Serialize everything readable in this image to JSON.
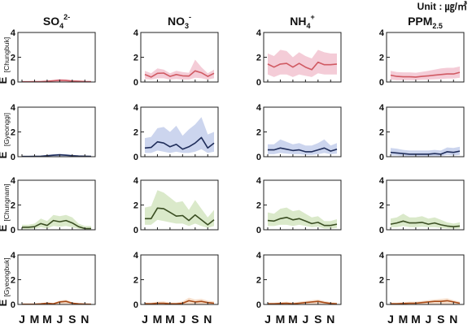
{
  "unit_label": "Unit : ㎍/㎥",
  "columns": [
    {
      "base": "SO",
      "sub": "4",
      "sup": "2-"
    },
    {
      "base": "NO",
      "sub": "3",
      "sup": "-"
    },
    {
      "base": "NH",
      "sub": "4",
      "sup": "+"
    },
    {
      "base": "PPM",
      "sub": "2.5",
      "sup": ""
    }
  ],
  "rows": [
    {
      "e_label": "E",
      "region": "[Chungbuk]"
    },
    {
      "e_label": "E",
      "region": "[Gyeonggi]"
    },
    {
      "e_label": "E",
      "region": "[Chungnam]"
    },
    {
      "e_label": "E",
      "region": "[Gyeongbuk]"
    }
  ],
  "x_tick_labels": [
    "J",
    "M",
    "M",
    "J",
    "S",
    "N"
  ],
  "chart_data": {
    "type": "line",
    "x": [
      1,
      2,
      3,
      4,
      5,
      6,
      7,
      8,
      9,
      10,
      11,
      12
    ],
    "x_ticks": [
      1,
      3,
      5,
      7,
      9,
      11
    ],
    "ylim": [
      0,
      4
    ],
    "yticks": [
      0,
      2,
      4
    ],
    "grid": false,
    "row_colors": [
      "#d05a63",
      "#1f2d5a",
      "#3a4e22",
      "#a84a16"
    ],
    "band_colors": [
      "#f3c6d3",
      "#c6d0ec",
      "#d6e7c4",
      "#f6dcc6"
    ],
    "panels": [
      [
        {
          "mean": [
            0.02,
            0.02,
            0.03,
            0.03,
            0.06,
            0.1,
            0.14,
            0.12,
            0.08,
            0.06,
            0.04,
            0.03
          ],
          "band": [
            [
              0,
              0.05
            ],
            [
              0,
              0.06
            ],
            [
              0,
              0.06
            ],
            [
              0,
              0.07
            ],
            [
              0,
              0.12
            ],
            [
              0,
              0.18
            ],
            [
              0,
              0.24
            ],
            [
              0,
              0.22
            ],
            [
              0,
              0.15
            ],
            [
              0,
              0.12
            ],
            [
              0,
              0.08
            ],
            [
              0,
              0.06
            ]
          ]
        },
        {
          "mean": [
            0.6,
            0.4,
            0.7,
            0.72,
            0.45,
            0.6,
            0.5,
            0.48,
            0.9,
            0.75,
            0.45,
            0.7
          ],
          "band": [
            [
              0.25,
              0.9
            ],
            [
              0.2,
              0.7
            ],
            [
              0.3,
              1.1
            ],
            [
              0.3,
              1.0
            ],
            [
              0.2,
              0.7
            ],
            [
              0.25,
              0.9
            ],
            [
              0.2,
              0.8
            ],
            [
              0.2,
              0.75
            ],
            [
              0.35,
              1.8
            ],
            [
              0.3,
              1.2
            ],
            [
              0.2,
              0.7
            ],
            [
              0.3,
              1.0
            ]
          ]
        },
        {
          "mean": [
            1.45,
            1.2,
            1.45,
            1.5,
            1.2,
            1.5,
            1.2,
            1.0,
            1.6,
            1.4,
            1.4,
            1.45
          ],
          "band": [
            [
              0.6,
              2.3
            ],
            [
              0.4,
              2.1
            ],
            [
              0.6,
              2.6
            ],
            [
              0.6,
              2.5
            ],
            [
              0.4,
              2.0
            ],
            [
              0.6,
              2.4
            ],
            [
              0.5,
              2.1
            ],
            [
              0.4,
              1.9
            ],
            [
              0.7,
              2.6
            ],
            [
              0.6,
              2.4
            ],
            [
              0.6,
              2.3
            ],
            [
              0.6,
              2.3
            ]
          ]
        },
        {
          "mean": [
            0.55,
            0.45,
            0.42,
            0.42,
            0.4,
            0.45,
            0.5,
            0.55,
            0.6,
            0.65,
            0.65,
            0.78
          ],
          "band": [
            [
              0.2,
              0.9
            ],
            [
              0.15,
              0.8
            ],
            [
              0.15,
              0.78
            ],
            [
              0.15,
              0.78
            ],
            [
              0.15,
              0.75
            ],
            [
              0.18,
              0.82
            ],
            [
              0.2,
              0.9
            ],
            [
              0.22,
              1.0
            ],
            [
              0.25,
              1.1
            ],
            [
              0.28,
              1.15
            ],
            [
              0.28,
              1.15
            ],
            [
              0.35,
              1.25
            ]
          ]
        }
      ],
      [
        {
          "mean": [
            0.02,
            0.02,
            0.03,
            0.04,
            0.08,
            0.12,
            0.15,
            0.12,
            0.08,
            0.05,
            0.04,
            0.03
          ],
          "band": [
            [
              0,
              0.05
            ],
            [
              0,
              0.05
            ],
            [
              0,
              0.07
            ],
            [
              0,
              0.08
            ],
            [
              0,
              0.14
            ],
            [
              0,
              0.2
            ],
            [
              0,
              0.24
            ],
            [
              0,
              0.2
            ],
            [
              0,
              0.14
            ],
            [
              0,
              0.1
            ],
            [
              0,
              0.08
            ],
            [
              0,
              0.06
            ]
          ]
        },
        {
          "mean": [
            0.7,
            0.75,
            1.2,
            1.1,
            0.8,
            1.0,
            0.6,
            0.8,
            1.1,
            1.55,
            0.7,
            1.1
          ],
          "band": [
            [
              0.3,
              1.5
            ],
            [
              0.3,
              1.6
            ],
            [
              0.5,
              2.3
            ],
            [
              0.4,
              2.4
            ],
            [
              0.3,
              2.0
            ],
            [
              0.4,
              2.5
            ],
            [
              0.3,
              1.7
            ],
            [
              0.3,
              2.2
            ],
            [
              0.4,
              2.6
            ],
            [
              0.6,
              3.2
            ],
            [
              0.3,
              1.8
            ],
            [
              0.4,
              2.0
            ]
          ]
        },
        {
          "mean": [
            0.55,
            0.55,
            0.7,
            0.6,
            0.5,
            0.55,
            0.4,
            0.4,
            0.55,
            0.7,
            0.45,
            0.6
          ],
          "band": [
            [
              0.2,
              1.0
            ],
            [
              0.2,
              1.0
            ],
            [
              0.3,
              1.4
            ],
            [
              0.25,
              1.2
            ],
            [
              0.2,
              1.0
            ],
            [
              0.2,
              1.1
            ],
            [
              0.15,
              0.9
            ],
            [
              0.15,
              0.9
            ],
            [
              0.2,
              1.1
            ],
            [
              0.3,
              1.4
            ],
            [
              0.2,
              0.9
            ],
            [
              0.25,
              1.1
            ]
          ]
        },
        {
          "mean": [
            0.35,
            0.3,
            0.25,
            0.2,
            0.2,
            0.2,
            0.2,
            0.25,
            0.2,
            0.4,
            0.35,
            0.45
          ],
          "band": [
            [
              0.1,
              0.7
            ],
            [
              0.1,
              0.65
            ],
            [
              0.05,
              0.55
            ],
            [
              0.05,
              0.5
            ],
            [
              0.05,
              0.5
            ],
            [
              0.05,
              0.5
            ],
            [
              0.05,
              0.5
            ],
            [
              0.05,
              0.55
            ],
            [
              0.05,
              0.5
            ],
            [
              0.15,
              0.75
            ],
            [
              0.1,
              0.7
            ],
            [
              0.15,
              0.8
            ]
          ]
        }
      ],
      [
        {
          "mean": [
            0.2,
            0.2,
            0.25,
            0.5,
            0.35,
            0.75,
            0.65,
            0.75,
            0.55,
            0.25,
            0.1,
            0.1
          ],
          "band": [
            [
              0.05,
              0.4
            ],
            [
              0.05,
              0.4
            ],
            [
              0.08,
              0.5
            ],
            [
              0.2,
              0.9
            ],
            [
              0.1,
              0.7
            ],
            [
              0.3,
              1.2
            ],
            [
              0.25,
              1.1
            ],
            [
              0.3,
              1.2
            ],
            [
              0.2,
              1.0
            ],
            [
              0.08,
              0.5
            ],
            [
              0.02,
              0.3
            ],
            [
              0.02,
              0.3
            ]
          ]
        },
        {
          "mean": [
            0.9,
            0.9,
            1.75,
            1.7,
            1.4,
            1.1,
            1.15,
            0.75,
            1.2,
            0.8,
            0.4,
            0.8
          ],
          "band": [
            [
              0.4,
              1.8
            ],
            [
              0.4,
              1.9
            ],
            [
              0.8,
              3.2
            ],
            [
              0.7,
              3.0
            ],
            [
              0.6,
              2.6
            ],
            [
              0.5,
              2.2
            ],
            [
              0.5,
              2.3
            ],
            [
              0.3,
              1.6
            ],
            [
              0.5,
              2.4
            ],
            [
              0.3,
              1.7
            ],
            [
              0.15,
              1.0
            ],
            [
              0.3,
              1.6
            ]
          ]
        },
        {
          "mean": [
            0.75,
            0.7,
            0.9,
            1.0,
            0.8,
            0.9,
            0.7,
            0.5,
            0.6,
            0.35,
            0.35,
            0.45
          ],
          "band": [
            [
              0.3,
              1.4
            ],
            [
              0.3,
              1.3
            ],
            [
              0.4,
              1.7
            ],
            [
              0.4,
              1.8
            ],
            [
              0.3,
              1.5
            ],
            [
              0.4,
              1.6
            ],
            [
              0.3,
              1.3
            ],
            [
              0.2,
              1.0
            ],
            [
              0.25,
              1.1
            ],
            [
              0.1,
              0.7
            ],
            [
              0.1,
              0.7
            ],
            [
              0.15,
              0.85
            ]
          ]
        },
        {
          "mean": [
            0.45,
            0.55,
            0.7,
            0.55,
            0.55,
            0.6,
            0.45,
            0.55,
            0.4,
            0.3,
            0.25,
            0.3
          ],
          "band": [
            [
              0.2,
              0.9
            ],
            [
              0.2,
              1.0
            ],
            [
              0.3,
              1.3
            ],
            [
              0.2,
              1.0
            ],
            [
              0.2,
              1.0
            ],
            [
              0.25,
              1.1
            ],
            [
              0.2,
              0.9
            ],
            [
              0.2,
              1.0
            ],
            [
              0.15,
              0.8
            ],
            [
              0.1,
              0.6
            ],
            [
              0.08,
              0.5
            ],
            [
              0.1,
              0.6
            ]
          ]
        }
      ],
      [
        {
          "mean": [
            0.02,
            0.02,
            0.02,
            0.05,
            0.1,
            0.05,
            0.2,
            0.25,
            0.1,
            0.05,
            0.03,
            0.02
          ],
          "band": [
            [
              0,
              0.05
            ],
            [
              0,
              0.05
            ],
            [
              0,
              0.05
            ],
            [
              0,
              0.1
            ],
            [
              0,
              0.18
            ],
            [
              0,
              0.1
            ],
            [
              0,
              0.32
            ],
            [
              0,
              0.38
            ],
            [
              0,
              0.18
            ],
            [
              0,
              0.1
            ],
            [
              0,
              0.06
            ],
            [
              0,
              0.05
            ]
          ]
        },
        {
          "mean": [
            0.05,
            0.05,
            0.1,
            0.1,
            0.05,
            0.05,
            0.1,
            0.3,
            0.2,
            0.25,
            0.15,
            0.1
          ],
          "band": [
            [
              0,
              0.15
            ],
            [
              0,
              0.15
            ],
            [
              0,
              0.22
            ],
            [
              0,
              0.25
            ],
            [
              0,
              0.15
            ],
            [
              0,
              0.15
            ],
            [
              0,
              0.25
            ],
            [
              0.05,
              0.55
            ],
            [
              0,
              0.4
            ],
            [
              0,
              0.45
            ],
            [
              0,
              0.3
            ],
            [
              0,
              0.25
            ]
          ]
        },
        {
          "mean": [
            0.05,
            0.05,
            0.08,
            0.1,
            0.05,
            0.1,
            0.15,
            0.2,
            0.25,
            0.15,
            0.08,
            0.05
          ],
          "band": [
            [
              0,
              0.15
            ],
            [
              0,
              0.15
            ],
            [
              0,
              0.18
            ],
            [
              0,
              0.22
            ],
            [
              0,
              0.15
            ],
            [
              0,
              0.22
            ],
            [
              0,
              0.28
            ],
            [
              0,
              0.35
            ],
            [
              0,
              0.4
            ],
            [
              0,
              0.28
            ],
            [
              0,
              0.18
            ],
            [
              0,
              0.15
            ]
          ]
        },
        {
          "mean": [
            0.05,
            0.05,
            0.08,
            0.1,
            0.1,
            0.15,
            0.2,
            0.25,
            0.25,
            0.3,
            0.2,
            0.1
          ],
          "band": [
            [
              0,
              0.15
            ],
            [
              0,
              0.15
            ],
            [
              0,
              0.18
            ],
            [
              0,
              0.22
            ],
            [
              0,
              0.22
            ],
            [
              0,
              0.28
            ],
            [
              0,
              0.35
            ],
            [
              0,
              0.4
            ],
            [
              0,
              0.45
            ],
            [
              0,
              0.5
            ],
            [
              0,
              0.35
            ],
            [
              0,
              0.22
            ]
          ]
        }
      ]
    ]
  }
}
